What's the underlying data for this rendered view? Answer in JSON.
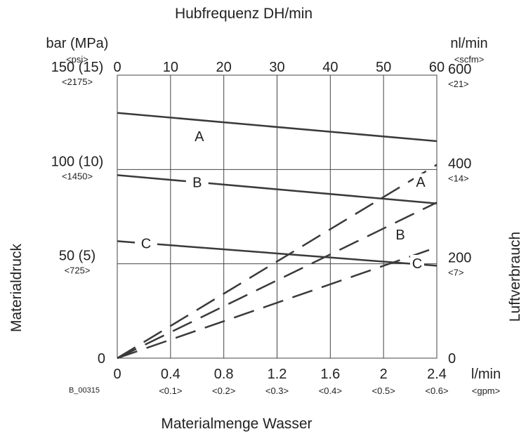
{
  "chart_data": {
    "type": "line",
    "title": "Hubfrequenz DH/min",
    "top_axis": {
      "label": "Hubfrequenz DH/min",
      "ticks": [
        "0",
        "10",
        "20",
        "30",
        "40",
        "50",
        "60"
      ],
      "range": [
        0,
        60
      ]
    },
    "bottom_axis": {
      "label": "Materialmenge Wasser",
      "unit": "l/min",
      "unit_alt": "<gpm>",
      "ticks": [
        "0",
        "0.4",
        "0.8",
        "1.2",
        "1.6",
        "2",
        "2.4"
      ],
      "ticks_alt": [
        "",
        "<0.1>",
        "<0.2>",
        "<0.3>",
        "<0.4>",
        "<0.5>",
        "<0.6>"
      ],
      "range": [
        0,
        2.4
      ]
    },
    "left_axis": {
      "label": "Materialdruck",
      "unit": "bar (MPa)",
      "unit_alt": "<psi>",
      "ticks": [
        "0",
        "50 (5)",
        "100 (10)",
        "150 (15)"
      ],
      "ticks_alt": [
        "",
        "<725>",
        "<1450>",
        "<2175>"
      ],
      "range": [
        0,
        150
      ]
    },
    "right_axis": {
      "label": "Luftverbrauch",
      "unit": "nl/min",
      "unit_alt": "<scfm>",
      "ticks": [
        "0",
        "200",
        "400",
        "600"
      ],
      "ticks_alt": [
        "",
        "<7>",
        "<14>",
        "<21>"
      ],
      "range": [
        0,
        600
      ]
    },
    "figure_id": "B_00315",
    "pressure_series": [
      {
        "name": "A",
        "x": [
          0,
          2.4
        ],
        "y": [
          130,
          115
        ]
      },
      {
        "name": "B",
        "x": [
          0,
          2.4
        ],
        "y": [
          97,
          82
        ]
      },
      {
        "name": "C",
        "x": [
          0,
          2.4
        ],
        "y": [
          62,
          49
        ]
      }
    ],
    "air_series": [
      {
        "name": "A",
        "x": [
          0,
          2.4
        ],
        "y": [
          0,
          410
        ]
      },
      {
        "name": "B",
        "x": [
          0,
          2.4
        ],
        "y": [
          0,
          330
        ]
      },
      {
        "name": "C",
        "x": [
          0,
          2.4
        ],
        "y": [
          0,
          235
        ]
      }
    ],
    "colors": {
      "line": "#3a3a3a",
      "grid": "#444444"
    }
  }
}
